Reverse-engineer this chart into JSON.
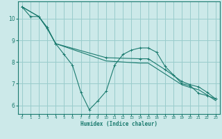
{
  "xlabel": "Humidex (Indice chaleur)",
  "bg_color": "#cce9e9",
  "line_color": "#1a7a6e",
  "grid_color": "#99cccc",
  "xlim": [
    -0.5,
    23.5
  ],
  "ylim": [
    5.6,
    10.8
  ],
  "xticks": [
    0,
    1,
    2,
    3,
    4,
    5,
    6,
    7,
    8,
    9,
    10,
    11,
    12,
    13,
    14,
    15,
    16,
    17,
    18,
    19,
    20,
    21,
    22,
    23
  ],
  "yticks": [
    6,
    7,
    8,
    9,
    10
  ],
  "line1_x": [
    0,
    1,
    2,
    3,
    4,
    5,
    6,
    7,
    8,
    9,
    10,
    11,
    12,
    13,
    14,
    15,
    16,
    17,
    18,
    19,
    20,
    21,
    22,
    23
  ],
  "line1_y": [
    10.55,
    10.1,
    10.1,
    9.6,
    8.85,
    8.35,
    7.85,
    6.6,
    5.8,
    6.2,
    6.65,
    7.85,
    8.35,
    8.55,
    8.65,
    8.65,
    8.45,
    7.8,
    7.4,
    7.0,
    6.9,
    6.55,
    6.45,
    6.3
  ],
  "line2_x": [
    0,
    2,
    3,
    4,
    10,
    14,
    15,
    17,
    19,
    20,
    21,
    22,
    23
  ],
  "line2_y": [
    10.55,
    10.1,
    9.55,
    8.85,
    8.2,
    8.15,
    8.15,
    7.65,
    7.1,
    6.95,
    6.85,
    6.6,
    6.3
  ],
  "line3_x": [
    0,
    2,
    3,
    4,
    10,
    14,
    15,
    17,
    19,
    20,
    21,
    22,
    23
  ],
  "line3_y": [
    10.55,
    10.1,
    9.55,
    8.85,
    8.05,
    7.95,
    7.95,
    7.45,
    6.95,
    6.82,
    6.72,
    6.48,
    6.22
  ]
}
